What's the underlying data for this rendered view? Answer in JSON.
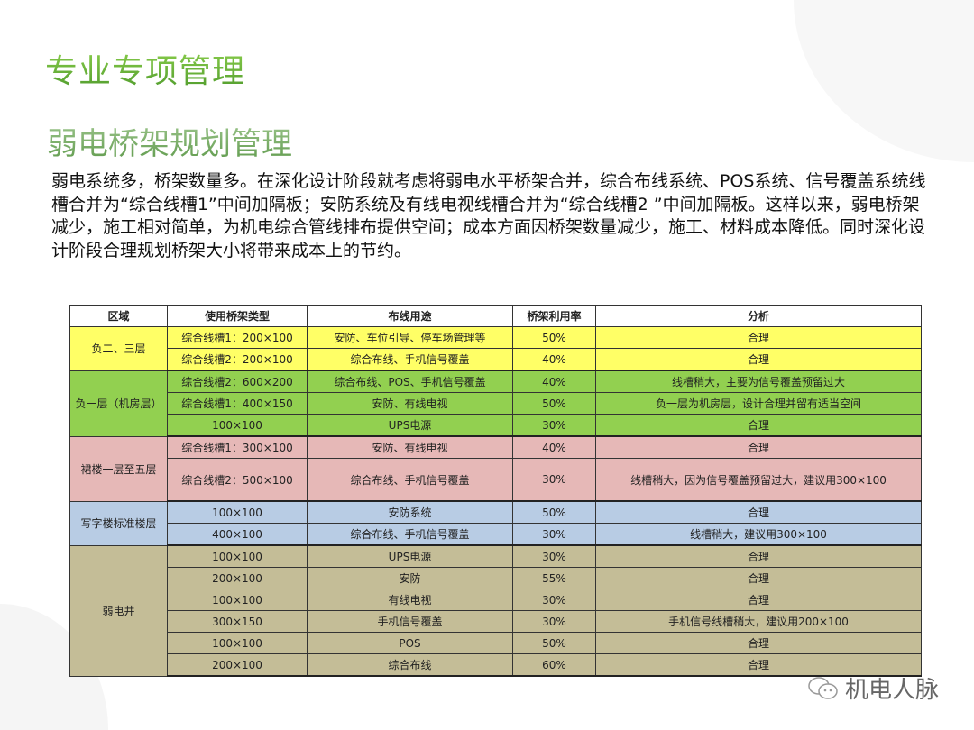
{
  "title": "专业专项管理",
  "subtitle": "弱电桥架规划管理",
  "paragraph": "弱电系统多，桥架数量多。在深化设计阶段就考虑将弱电水平桥架合并，综合布线系统、POS系统、信号覆盖系统线槽合并为“综合线槽1”中间加隔板；安防系统及有线电视线槽合并为“综合线槽2 ”中间加隔板。这样以来，弱电桥架减少，施工相对简单，为机电综合管线排布提供空间；成本方面因桥架数量减少，施工、材料成本降低。同时深化设计阶段合理规划桥架大小将带来成本上的节约。",
  "table": {
    "headers": [
      "区域",
      "使用桥架类型",
      "布线用途",
      "桥架利用率",
      "分析"
    ],
    "groups": [
      {
        "region": "负二、三层",
        "color": "#ffff66",
        "rows": [
          [
            "综合线槽1：200×100",
            "安防、车位引导、停车场管理等",
            "50%",
            "合理"
          ],
          [
            "综合线槽2：200×100",
            "综合布线、手机信号覆盖",
            "40%",
            "合理"
          ]
        ]
      },
      {
        "region": "负一层（机房层）",
        "color": "#92d050",
        "rows": [
          [
            "综合线槽2：600×200",
            "综合布线、POS、手机信号覆盖",
            "40%",
            "线槽稍大，主要为信号覆盖预留过大"
          ],
          [
            "综合线槽1：400×150",
            "安防、有线电视",
            "50%",
            "负一层为机房层，设计合理并留有适当空间"
          ],
          [
            "100×100",
            "UPS电源",
            "30%",
            "合理"
          ]
        ]
      },
      {
        "region": "裙楼一层至五层",
        "color": "#e6b8b7",
        "rows": [
          [
            "综合线槽1：300×100",
            "安防、有线电视",
            "40%",
            "合理"
          ],
          [
            "综合线槽2：500×100",
            "综合布线、手机信号覆盖",
            "30%",
            "线槽稍大，因为信号覆盖预留过大，建议用300×100"
          ]
        ]
      },
      {
        "region": "写字楼标准楼层",
        "color": "#b8cce4",
        "rows": [
          [
            "100×100",
            "安防系统",
            "50%",
            "合理"
          ],
          [
            "400×100",
            "综合布线、手机信号覆盖",
            "30%",
            "线槽稍大，建议用300×100"
          ]
        ]
      },
      {
        "region": "弱电井",
        "color": "#c4bd97",
        "rows": [
          [
            "100×100",
            "UPS电源",
            "30%",
            "合理"
          ],
          [
            "200×100",
            "安防",
            "55%",
            "合理"
          ],
          [
            "100×100",
            "有线电视",
            "30%",
            "合理"
          ],
          [
            "300×150",
            "手机信号覆盖",
            "30%",
            "手机信号线槽稍大，建议用200×100"
          ],
          [
            "100×100",
            "POS",
            "50%",
            "合理"
          ],
          [
            "200×100",
            "综合布线",
            "60%",
            "合理"
          ]
        ]
      }
    ]
  },
  "watermark": {
    "icon": "wechat-icon",
    "text": "机电人脉"
  }
}
